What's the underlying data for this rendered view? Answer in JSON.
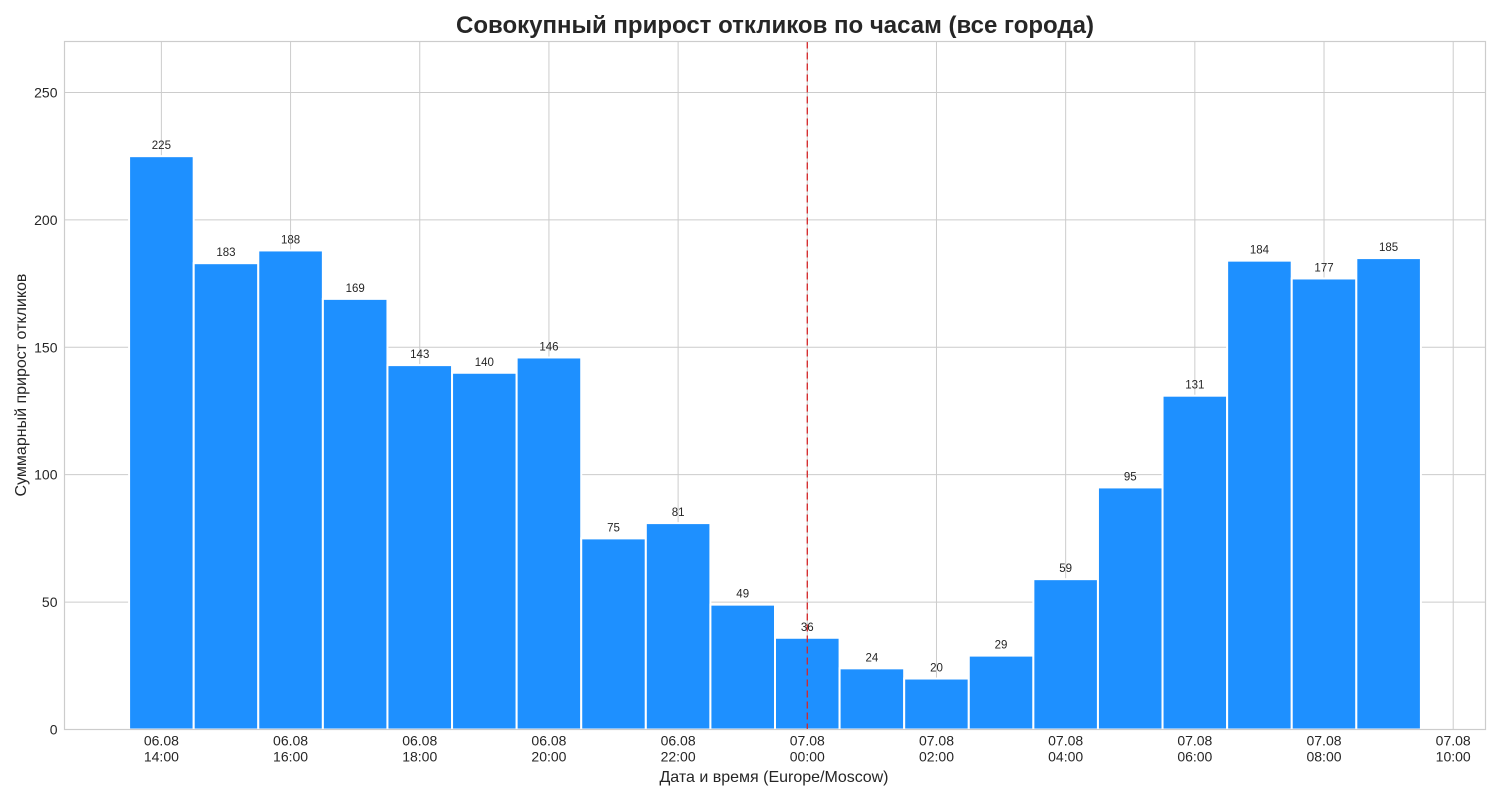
{
  "chart_data": {
    "type": "bar",
    "title": "Совокупный прирост откликов по часам (все города)",
    "xlabel": "Дата и время (Europe/Moscow)",
    "ylabel": "Суммарный прирост откликов",
    "bar_color": "#1e90ff",
    "marker_color": "#d62728",
    "grid": true,
    "ylim": [
      0,
      270
    ],
    "yticks": [
      0,
      50,
      100,
      150,
      200,
      250
    ],
    "x_hours_range": [
      -1.5,
      20.5
    ],
    "bars": [
      {
        "hour": 0,
        "value": 225
      },
      {
        "hour": 1,
        "value": 183
      },
      {
        "hour": 2,
        "value": 188
      },
      {
        "hour": 3,
        "value": 169
      },
      {
        "hour": 4,
        "value": 143
      },
      {
        "hour": 5,
        "value": 140
      },
      {
        "hour": 6,
        "value": 146
      },
      {
        "hour": 7,
        "value": 75
      },
      {
        "hour": 8,
        "value": 81
      },
      {
        "hour": 9,
        "value": 49
      },
      {
        "hour": 10,
        "value": 36
      },
      {
        "hour": 11,
        "value": 24
      },
      {
        "hour": 12,
        "value": 20
      },
      {
        "hour": 13,
        "value": 29
      },
      {
        "hour": 14,
        "value": 59
      },
      {
        "hour": 15,
        "value": 95
      },
      {
        "hour": 16,
        "value": 131
      },
      {
        "hour": 17,
        "value": 184
      },
      {
        "hour": 18,
        "value": 177
      },
      {
        "hour": 19,
        "value": 185
      }
    ],
    "xticks": [
      {
        "hour": 0,
        "date": "06.08",
        "time": "14:00"
      },
      {
        "hour": 2,
        "date": "06.08",
        "time": "16:00"
      },
      {
        "hour": 4,
        "date": "06.08",
        "time": "18:00"
      },
      {
        "hour": 6,
        "date": "06.08",
        "time": "20:00"
      },
      {
        "hour": 8,
        "date": "06.08",
        "time": "22:00"
      },
      {
        "hour": 10,
        "date": "07.08",
        "time": "00:00"
      },
      {
        "hour": 12,
        "date": "07.08",
        "time": "02:00"
      },
      {
        "hour": 14,
        "date": "07.08",
        "time": "04:00"
      },
      {
        "hour": 16,
        "date": "07.08",
        "time": "06:00"
      },
      {
        "hour": 18,
        "date": "07.08",
        "time": "08:00"
      },
      {
        "hour": 20,
        "date": "07.08",
        "time": "10:00"
      }
    ],
    "vline_hour": 10
  }
}
